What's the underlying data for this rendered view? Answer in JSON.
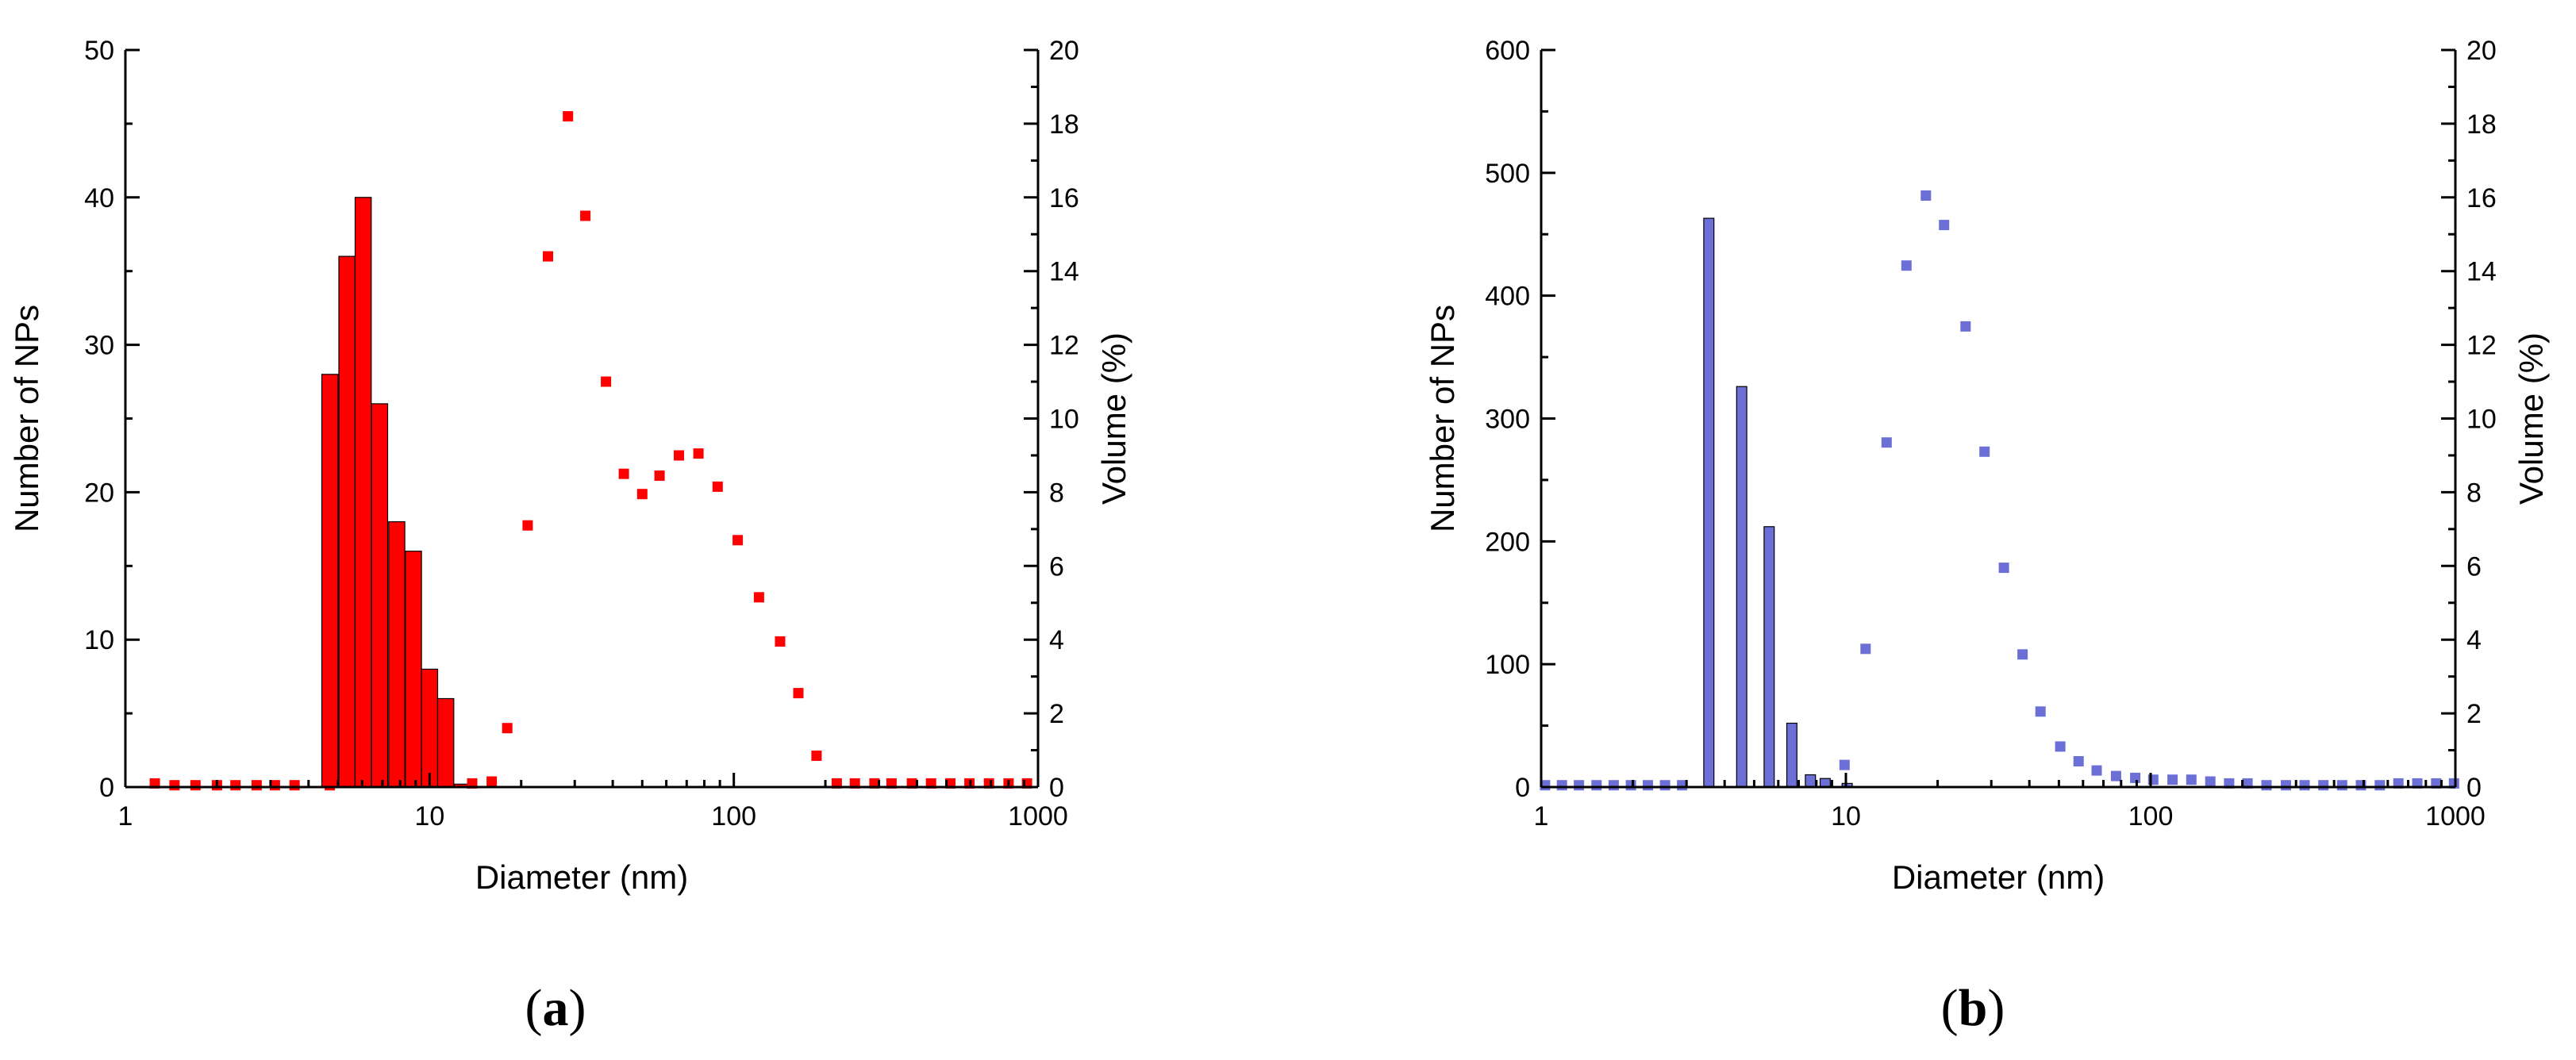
{
  "figure": {
    "panels": [
      {
        "label_open": "(",
        "label_letter": "a",
        "label_close": ")"
      },
      {
        "label_open": "(",
        "label_letter": "b",
        "label_close": ")"
      }
    ]
  },
  "chart_data": [
    {
      "type": "bar",
      "panel": "a",
      "color": "#ff0000",
      "xlabel": "Diameter (nm)",
      "ylabel": "Number of NPs",
      "y2label": "Volume (%)",
      "xscale": "log",
      "xlim": [
        1,
        1000
      ],
      "ylim": [
        0,
        50
      ],
      "y2lim": [
        0,
        20
      ],
      "xticks": [
        1,
        10,
        100,
        1000
      ],
      "yticks": [
        0,
        10,
        20,
        30,
        40,
        50
      ],
      "y2ticks": [
        0,
        2,
        4,
        6,
        8,
        10,
        12,
        14,
        16,
        18,
        20
      ],
      "xtick_labels": [
        "1",
        "10",
        "100",
        "1000"
      ],
      "ytick_labels": [
        "0",
        "10",
        "20",
        "30",
        "40",
        "50"
      ],
      "y2tick_labels": [
        "0",
        "2",
        "4",
        "6",
        "8",
        "10",
        "12",
        "14",
        "16",
        "18",
        "20"
      ],
      "grid": false,
      "bar_width_factor": 1.13,
      "bars": {
        "x": [
          4.7,
          5.35,
          6.05,
          6.85,
          7.8,
          8.85,
          10.0,
          11.3,
          12.8
        ],
        "values": [
          28,
          36,
          40,
          26,
          18,
          16,
          8,
          6,
          0.2
        ]
      },
      "scatter": {
        "axis": "y2",
        "marker": "square",
        "x": [
          1.25,
          1.45,
          1.7,
          2.0,
          2.3,
          2.7,
          3.1,
          3.6,
          4.7,
          13.8,
          16.0,
          18.0,
          21.0,
          24.5,
          28.5,
          32.5,
          38.0,
          43.5,
          50.0,
          57.0,
          66.0,
          76.5,
          88.5,
          103,
          121,
          142,
          163,
          187,
          218,
          250,
          290,
          330,
          385,
          445,
          515,
          595,
          690,
          800,
          920
        ],
        "values": [
          0.1,
          0.05,
          0.05,
          0.05,
          0.05,
          0.05,
          0.05,
          0.05,
          0.05,
          0.1,
          0.15,
          1.6,
          7.1,
          14.4,
          18.2,
          15.5,
          11.0,
          8.5,
          7.95,
          8.45,
          9.0,
          9.05,
          8.15,
          6.7,
          5.15,
          3.95,
          2.55,
          0.85,
          0.1,
          0.1,
          0.1,
          0.1,
          0.1,
          0.1,
          0.1,
          0.1,
          0.1,
          0.1,
          0.1
        ]
      }
    },
    {
      "type": "bar",
      "panel": "b",
      "color": "#6b6fd6",
      "xlabel": "Diameter (nm)",
      "ylabel": "Number of NPs",
      "y2label": "Volume (%)",
      "xscale": "log",
      "xlim": [
        1,
        1000
      ],
      "ylim": [
        0,
        600
      ],
      "y2lim": [
        0,
        20
      ],
      "xticks": [
        1,
        10,
        100,
        1000
      ],
      "yticks": [
        0,
        100,
        200,
        300,
        400,
        500,
        600
      ],
      "y2ticks": [
        0,
        2,
        4,
        6,
        8,
        10,
        12,
        14,
        16,
        18,
        20
      ],
      "xtick_labels": [
        "1",
        "10",
        "100",
        "1000"
      ],
      "ytick_labels": [
        "0",
        "100",
        "200",
        "300",
        "400",
        "500",
        "600"
      ],
      "y2tick_labels": [
        "0",
        "2",
        "4",
        "6",
        "8",
        "10",
        "12",
        "14",
        "16",
        "18",
        "20"
      ],
      "grid": false,
      "bar_width_factor": 1.08,
      "bars": {
        "x": [
          3.55,
          4.55,
          5.6,
          6.65,
          7.65,
          8.55,
          10.1
        ],
        "values": [
          463,
          326,
          212,
          52,
          10,
          7,
          3
        ]
      },
      "scatter": {
        "axis": "y2",
        "marker": "square",
        "x": [
          1.03,
          1.17,
          1.33,
          1.52,
          1.73,
          1.97,
          2.24,
          2.55,
          2.9,
          9.9,
          11.6,
          13.6,
          15.8,
          18.3,
          21.0,
          24.7,
          28.5,
          33.0,
          38.0,
          43.5,
          50.5,
          58.0,
          66.5,
          77.0,
          89.0,
          102,
          118,
          136,
          157,
          181,
          208,
          240,
          278,
          320,
          369,
          425,
          490,
          565,
          650,
          750,
          865,
          990
        ],
        "values": [
          0.05,
          0.05,
          0.05,
          0.05,
          0.05,
          0.05,
          0.05,
          0.05,
          0.05,
          0.6,
          3.75,
          9.35,
          14.15,
          16.05,
          15.25,
          12.5,
          9.1,
          5.95,
          3.6,
          2.05,
          1.1,
          0.7,
          0.45,
          0.3,
          0.25,
          0.2,
          0.2,
          0.2,
          0.15,
          0.1,
          0.1,
          0.05,
          0.05,
          0.05,
          0.05,
          0.05,
          0.05,
          0.05,
          0.1,
          0.1,
          0.1,
          0.1
        ]
      }
    }
  ]
}
